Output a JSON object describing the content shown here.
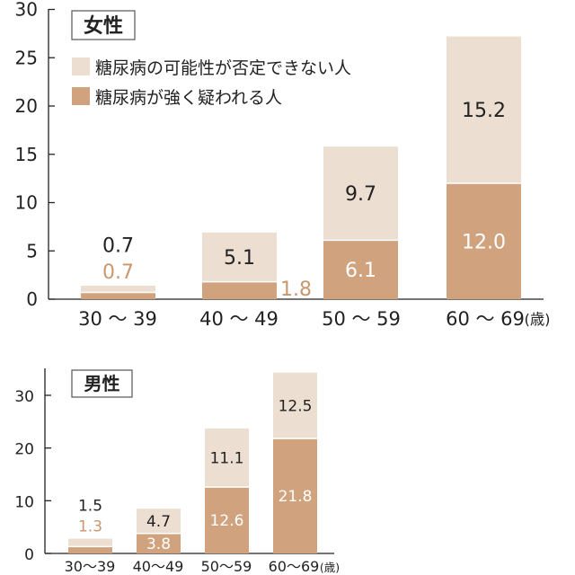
{
  "colors": {
    "possible": "#ecdfd2",
    "strong": "#d0a37e",
    "axis": "#222222",
    "label_dark": "#222222",
    "label_light": "#ffffff",
    "label_outside_strong": "#c9976e"
  },
  "legend": {
    "position": "top-left",
    "items": [
      {
        "label": "糖尿病の可能性が否定できない人",
        "color": "#ecdfd2"
      },
      {
        "label": "糖尿病が強く疑われる人",
        "color": "#d0a37e"
      }
    ]
  },
  "chart_data": [
    {
      "type": "bar",
      "stacked": true,
      "title": "女性",
      "categories": [
        "30 ～ 39",
        "40 ～ 49",
        "50 ～ 59",
        "60 ～ 69"
      ],
      "unit_label": "(歳)",
      "ylim": [
        0,
        30
      ],
      "yticks": [
        "0",
        "5",
        "10",
        "15",
        "20",
        "25",
        "30"
      ],
      "grid": false,
      "series": [
        {
          "name": "糖尿病が強く疑われる人",
          "values": [
            0.7,
            1.8,
            6.1,
            12.0
          ],
          "labels": [
            "0.7",
            "1.8",
            "6.1",
            "12.0"
          ]
        },
        {
          "name": "糖尿病の可能性が否定できない人",
          "values": [
            0.7,
            5.1,
            9.7,
            15.2
          ],
          "labels": [
            "0.7",
            "5.1",
            "9.7",
            "15.2"
          ]
        }
      ]
    },
    {
      "type": "bar",
      "stacked": true,
      "title": "男性",
      "categories": [
        "30～39",
        "40～49",
        "50～59",
        "60～69"
      ],
      "unit_label": "(歳)",
      "ylim": [
        0,
        35
      ],
      "yticks": [
        "0",
        "10",
        "20",
        "30"
      ],
      "grid": false,
      "series": [
        {
          "name": "糖尿病が強く疑われる人",
          "values": [
            1.3,
            3.8,
            12.6,
            21.8
          ],
          "labels": [
            "1.3",
            "3.8",
            "12.6",
            "21.8"
          ]
        },
        {
          "name": "糖尿病の可能性が否定できない人",
          "values": [
            1.5,
            4.7,
            11.1,
            12.5
          ],
          "labels": [
            "1.5",
            "4.7",
            "11.1",
            "12.5"
          ]
        }
      ]
    }
  ]
}
